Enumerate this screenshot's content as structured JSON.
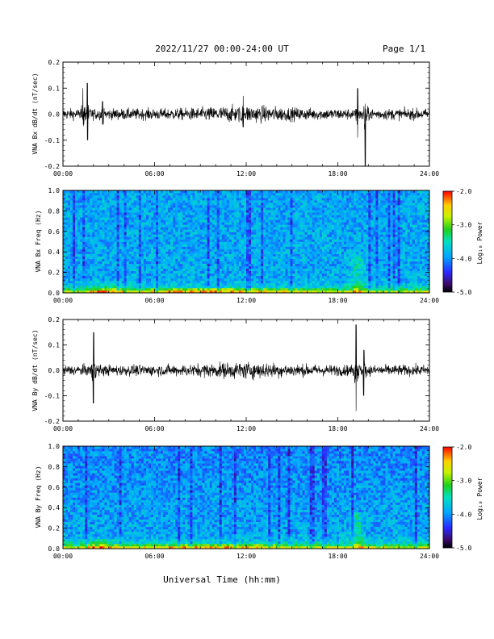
{
  "header": {
    "title": "2022/11/27  00:00-24:00 UT",
    "page": "Page 1/1"
  },
  "xlabel": "Universal Time (hh:mm)",
  "colorbar_label": "Log₁₀ Power",
  "chart_data": [
    {
      "type": "line",
      "ylabel": "VNA Bx dB/dt (nT/sec)",
      "x_ticks": [
        "00:00",
        "06:00",
        "12:00",
        "18:00",
        "24:00"
      ],
      "xlim": [
        0,
        24
      ],
      "ylim": [
        -0.2,
        0.2
      ],
      "y_ticks": [
        "0.2",
        "0.1",
        "0.0",
        "-0.1",
        "-0.2"
      ],
      "events": [
        {
          "t": 1.6,
          "max": 0.12,
          "min": -0.1
        },
        {
          "t": 1.3,
          "max": 0.1,
          "min": -0.02
        },
        {
          "t": 2.6,
          "max": 0.05,
          "min": -0.04
        },
        {
          "t": 11.8,
          "max": 0.07,
          "min": -0.05
        },
        {
          "t": 19.3,
          "max": 0.1,
          "min": -0.09
        },
        {
          "t": 19.8,
          "max": 0.04,
          "min": -0.2
        }
      ]
    },
    {
      "type": "heatmap",
      "ylabel": "VNA Bx Freq (Hz)",
      "x_ticks": [
        "00:00",
        "06:00",
        "12:00",
        "18:00",
        "24:00"
      ],
      "xlim": [
        0,
        24
      ],
      "ylim": [
        0,
        1
      ],
      "y_ticks": [
        "1.0",
        "0.8",
        "0.6",
        "0.4",
        "0.2",
        "0.0"
      ],
      "colorbar": {
        "range": [
          -5,
          -2
        ],
        "ticks": [
          "-2.0",
          "-3.0",
          "-4.0",
          "-5.0"
        ]
      }
    },
    {
      "type": "line",
      "ylabel": "VNA By dB/dt (nT/sec)",
      "x_ticks": [
        "00:00",
        "06:00",
        "12:00",
        "18:00",
        "24:00"
      ],
      "xlim": [
        0,
        24
      ],
      "ylim": [
        -0.2,
        0.2
      ],
      "y_ticks": [
        "0.2",
        "0.1",
        "0.0",
        "-0.1",
        "-0.2"
      ],
      "events": [
        {
          "t": 2.0,
          "max": 0.15,
          "min": -0.13
        },
        {
          "t": 19.2,
          "max": 0.18,
          "min": -0.16
        },
        {
          "t": 19.7,
          "max": 0.08,
          "min": -0.1
        }
      ]
    },
    {
      "type": "heatmap",
      "ylabel": "VNA By Freq (Hz)",
      "x_ticks": [
        "00:00",
        "06:00",
        "12:00",
        "18:00",
        "24:00"
      ],
      "xlim": [
        0,
        24
      ],
      "ylim": [
        0,
        1
      ],
      "y_ticks": [
        "1.0",
        "0.8",
        "0.6",
        "0.4",
        "0.2",
        "0.0"
      ],
      "colorbar": {
        "range": [
          -5,
          -2
        ],
        "ticks": [
          "-2.0",
          "-3.0",
          "-4.0",
          "-5.0"
        ]
      }
    }
  ]
}
